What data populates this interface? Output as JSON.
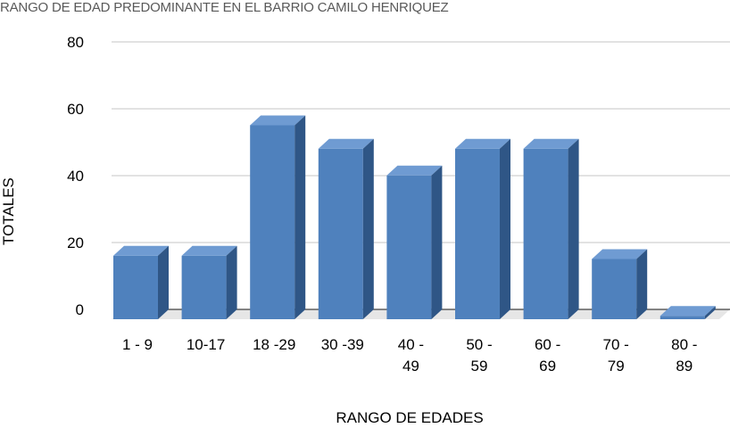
{
  "chart_data": {
    "type": "bar",
    "title": "RANGO DE EDAD PREDOMINANTE EN EL BARRIO CAMILO HENRIQUEZ",
    "xlabel": "RANGO DE EDADES",
    "ylabel": "TOTALES",
    "categories": [
      [
        "1 - 9"
      ],
      [
        "10-17"
      ],
      [
        "18 -29"
      ],
      [
        "30 -39"
      ],
      [
        "40 -",
        "49"
      ],
      [
        "50 -",
        "59"
      ],
      [
        "60 -",
        "69"
      ],
      [
        "70 -",
        "79"
      ],
      [
        "80 -",
        "89"
      ]
    ],
    "values": [
      19,
      19,
      58,
      51,
      43,
      51,
      51,
      18,
      1
    ],
    "ylim": [
      0,
      80
    ],
    "yticks": [
      0,
      20,
      40,
      60,
      80
    ],
    "grid": true,
    "legend": "none",
    "colors": {
      "bar_front": "#4f81bd",
      "bar_top": "#6f9bd2",
      "bar_side": "#2f5686",
      "floor": "#e6e6e6",
      "grid": "#d9d9d9"
    }
  }
}
